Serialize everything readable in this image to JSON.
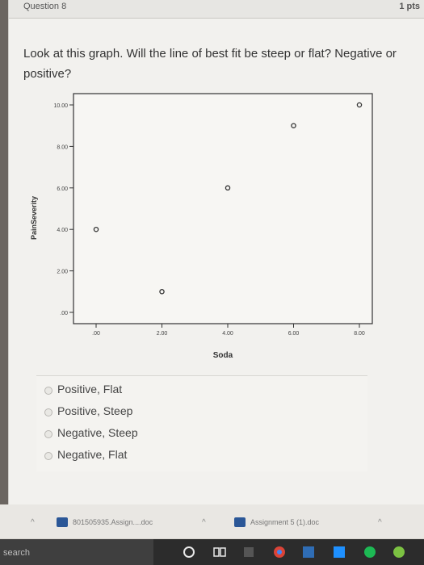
{
  "question": {
    "title": "Question 8",
    "points": "1 pts",
    "text": "Look at this graph. Will the line of best fit be steep or flat? Negative or positive?"
  },
  "options": [
    "Positive, Flat",
    "Positive, Steep",
    "Negative, Steep",
    "Negative, Flat"
  ],
  "chart_data": {
    "type": "scatter",
    "xlabel": "Soda",
    "ylabel": "PainSeverity",
    "xlim": [
      0,
      8
    ],
    "ylim": [
      0,
      10
    ],
    "x_ticks": [
      ".00",
      "2.00",
      "4.00",
      "6.00",
      "8.00"
    ],
    "y_ticks": [
      ".00",
      "2.00",
      "4.00",
      "6.00",
      "8.00",
      "10.00"
    ],
    "x": [
      0,
      2,
      4,
      6,
      8
    ],
    "y": [
      4,
      1,
      6,
      9,
      10
    ],
    "grid": false,
    "colors": {
      "frame": "#333333",
      "points": "#333333"
    }
  },
  "downloads": [
    {
      "label": "801505935.Assign....doc"
    },
    {
      "label": "Assignment 5 (1).doc"
    }
  ],
  "taskbar": {
    "search_text": "search"
  }
}
